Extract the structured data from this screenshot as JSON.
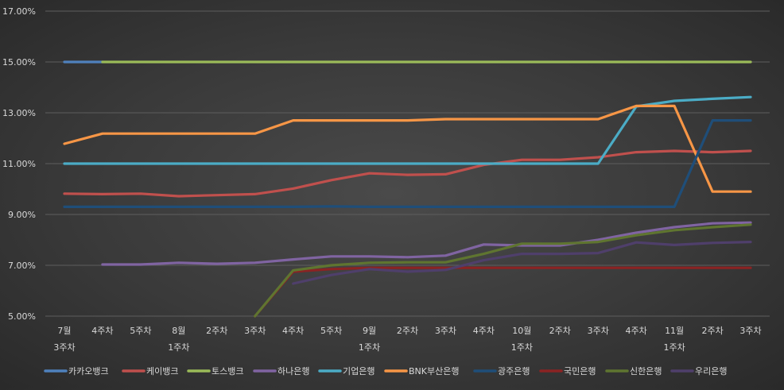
{
  "chart_data": {
    "type": "line",
    "title": "",
    "xlabel": "",
    "ylabel": "",
    "ylim": [
      5,
      17
    ],
    "yticks": [
      "5.00%",
      "7.00%",
      "9.00%",
      "11.00%",
      "13.00%",
      "15.00%",
      "17.00%"
    ],
    "grid": true,
    "legend_position": "bottom",
    "categories": [
      [
        "7월",
        "3주차"
      ],
      [
        "4주차"
      ],
      [
        "5주차"
      ],
      [
        "8월",
        "1주차"
      ],
      [
        "2주차"
      ],
      [
        "3주차"
      ],
      [
        "4주차"
      ],
      [
        "5주차"
      ],
      [
        "9월",
        "1주차"
      ],
      [
        "2주차"
      ],
      [
        "3주차"
      ],
      [
        "4주차"
      ],
      [
        "10월",
        "1주차"
      ],
      [
        "2주차"
      ],
      [
        "3주차"
      ],
      [
        "4주차"
      ],
      [
        "11월",
        "1주차"
      ],
      [
        "2주차"
      ],
      [
        "3주차"
      ]
    ],
    "series": [
      {
        "name": "카카오뱅크",
        "color": "#4f81bd",
        "values": [
          15.0,
          15.0,
          null,
          null,
          null,
          null,
          null,
          null,
          null,
          null,
          null,
          null,
          null,
          null,
          null,
          null,
          null,
          null,
          null
        ]
      },
      {
        "name": "케이뱅크",
        "color": "#c0504d",
        "values": [
          9.82,
          9.8,
          9.82,
          9.72,
          9.76,
          9.8,
          10.02,
          10.35,
          10.62,
          10.56,
          10.58,
          10.95,
          11.15,
          11.15,
          11.25,
          11.45,
          11.5,
          11.45,
          11.5
        ]
      },
      {
        "name": "토스뱅크",
        "color": "#9bbb59",
        "values": [
          null,
          15.0,
          15.0,
          15.0,
          15.0,
          15.0,
          15.0,
          15.0,
          15.0,
          15.0,
          15.0,
          15.0,
          15.0,
          15.0,
          15.0,
          15.0,
          15.0,
          15.0,
          15.0
        ]
      },
      {
        "name": "하나은행",
        "color": "#8064a2",
        "values": [
          null,
          7.03,
          7.03,
          7.1,
          7.06,
          7.1,
          7.23,
          7.35,
          7.35,
          7.32,
          7.38,
          7.82,
          7.78,
          7.78,
          8.0,
          8.28,
          8.5,
          8.65,
          8.68
        ]
      },
      {
        "name": "기업은행",
        "color": "#4bacc6",
        "values": [
          11.0,
          11.0,
          11.0,
          11.0,
          11.0,
          11.0,
          11.0,
          11.0,
          11.0,
          11.0,
          11.0,
          11.0,
          11.0,
          11.0,
          11.0,
          13.25,
          13.47,
          13.55,
          13.62
        ]
      },
      {
        "name": "BNK부산은행",
        "color": "#f79646",
        "values": [
          11.78,
          12.18,
          12.18,
          12.18,
          12.18,
          12.18,
          12.7,
          12.7,
          12.7,
          12.7,
          12.75,
          12.75,
          12.75,
          12.75,
          12.75,
          13.27,
          13.27,
          9.9,
          9.9
        ]
      },
      {
        "name": "광주은행",
        "color": "#1f4e79",
        "values": [
          9.3,
          9.3,
          9.3,
          9.3,
          9.3,
          9.3,
          9.3,
          9.32,
          9.3,
          9.3,
          9.3,
          9.3,
          9.3,
          9.3,
          9.3,
          9.3,
          9.3,
          12.7,
          12.7
        ]
      },
      {
        "name": "국민은행",
        "color": "#8b2323",
        "values": [
          null,
          null,
          null,
          null,
          null,
          5.0,
          6.75,
          6.85,
          6.9,
          6.9,
          6.9,
          6.9,
          6.9,
          6.9,
          6.9,
          6.9,
          6.9,
          6.9,
          6.9
        ]
      },
      {
        "name": "신한은행",
        "color": "#5f7530",
        "values": [
          null,
          null,
          null,
          null,
          null,
          5.0,
          6.8,
          7.0,
          7.1,
          7.12,
          7.12,
          7.45,
          7.85,
          7.85,
          7.92,
          8.18,
          8.38,
          8.5,
          8.6
        ]
      },
      {
        "name": "우리은행",
        "color": "#4f3f6b",
        "values": [
          null,
          null,
          null,
          null,
          null,
          null,
          6.28,
          6.62,
          6.85,
          6.75,
          6.82,
          7.2,
          7.45,
          7.45,
          7.48,
          7.9,
          7.8,
          7.88,
          7.92
        ]
      }
    ]
  }
}
